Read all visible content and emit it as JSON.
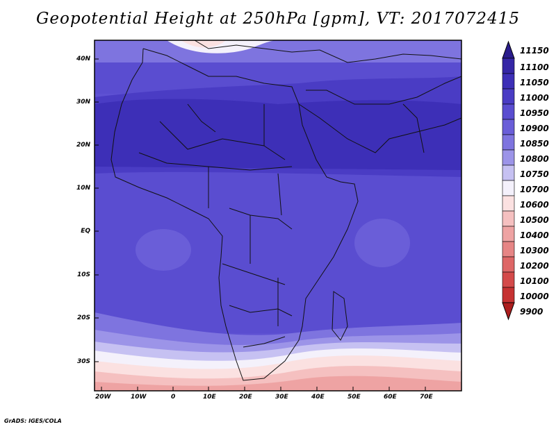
{
  "title": "Geopotential Height at 250hPa [gpm], VT: 2017072415",
  "credit": "GrADS: IGES/COLA",
  "latitude_labels": [
    "40N",
    "30N",
    "20N",
    "10N",
    "EQ",
    "10S",
    "20S",
    "30S"
  ],
  "longitude_labels": [
    "20W",
    "10W",
    "0",
    "10E",
    "20E",
    "30E",
    "40E",
    "50E",
    "60E",
    "70E"
  ],
  "colorbar": {
    "levels": [
      "11150",
      "11100",
      "11050",
      "11000",
      "10950",
      "10900",
      "10850",
      "10800",
      "10750",
      "10700",
      "10600",
      "10500",
      "10400",
      "10300",
      "10200",
      "10100",
      "10000",
      "9900"
    ],
    "colors": [
      "#2a1c8c",
      "#3526a6",
      "#3d2fb7",
      "#4a3cc4",
      "#5a4dd0",
      "#6a5ed8",
      "#7e74df",
      "#9c94e8",
      "#c6c1f2",
      "#f4f1fb",
      "#fbe1e1",
      "#f5c0c0",
      "#eea3a3",
      "#e68585",
      "#de6767",
      "#d44a4a",
      "#c63232",
      "#ac1e1e"
    ]
  }
}
